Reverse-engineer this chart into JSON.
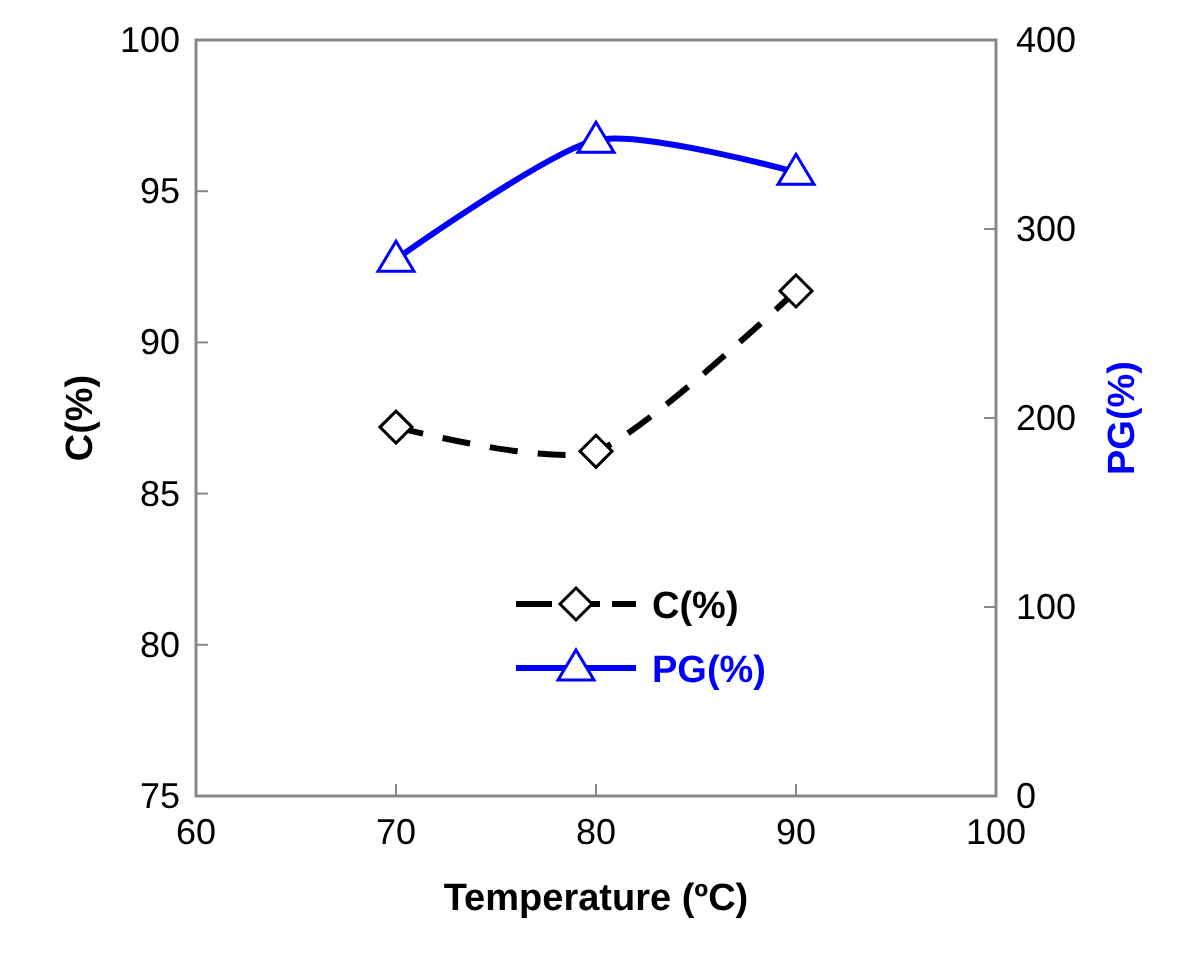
{
  "chart_data": {
    "type": "line",
    "xlabel": "Temperature (ºC)",
    "ylabel": "C(%)",
    "y2label": "PG(%)",
    "x": [
      70,
      80,
      90
    ],
    "series": [
      {
        "name": "C(%)",
        "color": "#000000",
        "values": [
          87.2,
          86.4,
          91.7
        ],
        "marker": "diamond",
        "line_style": "dashed"
      },
      {
        "name": "PG(%)",
        "color": "#0000ff",
        "values": [
          284,
          347,
          330
        ],
        "marker": "triangle",
        "line_style": "solid",
        "axis": "y2"
      }
    ],
    "xlim": [
      60,
      100
    ],
    "xticks": [
      60,
      70,
      80,
      90,
      100
    ],
    "ylim": [
      75,
      100
    ],
    "yticks": [
      75,
      80,
      85,
      90,
      95,
      100
    ],
    "y2lim": [
      0,
      400
    ],
    "y2ticks": [
      0,
      100,
      200,
      300,
      400
    ],
    "legend": "bottom right",
    "grid": false
  }
}
